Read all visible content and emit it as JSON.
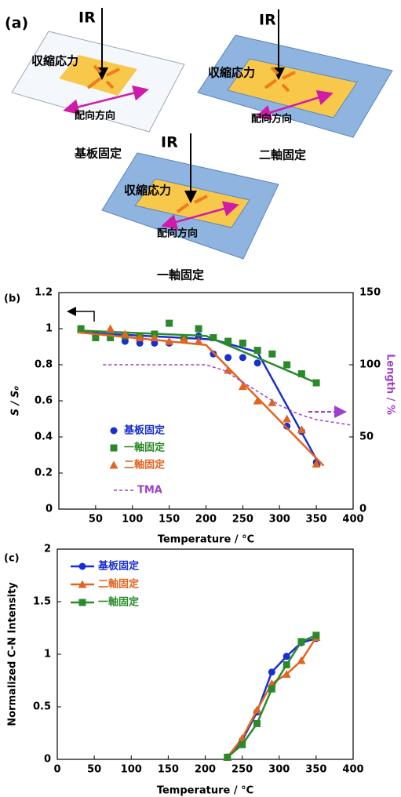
{
  "diagram": {
    "panel": "(a)",
    "parts": [
      {
        "ir": "IR",
        "stress": "収縮応力",
        "orientation": "配向方向",
        "caption": "基板固定"
      },
      {
        "ir": "IR",
        "stress": "収縮応力",
        "orientation": "配向方向",
        "caption": "二軸固定"
      },
      {
        "ir": "IR",
        "stress": "収縮応力",
        "orientation": "配向方向",
        "caption": "一軸固定"
      }
    ]
  },
  "chart_data": [
    {
      "type": "scatter",
      "panel": "(b)",
      "xlabel": "Temperature / °C",
      "ylabel": "S / S₀",
      "y2label": "Length / %",
      "xlim": [
        0,
        400
      ],
      "xticks": [
        50,
        100,
        150,
        200,
        250,
        300,
        350,
        400
      ],
      "ylim": [
        0,
        1.2
      ],
      "yticks": [
        0,
        0.2,
        0.4,
        0.6,
        0.8,
        1,
        1.2
      ],
      "y2lim": [
        0,
        150
      ],
      "y2ticks": [
        0,
        50,
        100,
        150
      ],
      "series": [
        {
          "name": "基板固定",
          "color": "#1a2fd0",
          "marker": "circle",
          "x": [
            50,
            90,
            110,
            130,
            150,
            190,
            210,
            230,
            250,
            270,
            310,
            330,
            350
          ],
          "values": [
            0.97,
            0.93,
            0.92,
            0.92,
            0.92,
            0.96,
            0.86,
            0.84,
            0.84,
            0.81,
            0.46,
            0.43,
            0.26
          ],
          "fit": {
            "x": [
              25,
              210,
              270,
              355
            ],
            "values": [
              0.98,
              0.94,
              0.87,
              0.24
            ]
          }
        },
        {
          "name": "一軸固定",
          "color": "#2a8a2a",
          "marker": "square",
          "x": [
            30,
            50,
            70,
            90,
            110,
            130,
            150,
            170,
            190,
            210,
            230,
            250,
            270,
            290,
            310,
            330,
            350
          ],
          "values": [
            1.0,
            0.95,
            0.95,
            0.96,
            0.96,
            0.97,
            1.03,
            0.95,
            1.0,
            0.95,
            0.93,
            0.92,
            0.88,
            0.86,
            0.8,
            0.75,
            0.7
          ],
          "fit": {
            "x": [
              25,
              200,
              350
            ],
            "values": [
              0.99,
              0.96,
              0.7
            ]
          }
        },
        {
          "name": "二軸固定",
          "color": "#e2641e",
          "marker": "triangle",
          "x": [
            70,
            90,
            110,
            130,
            150,
            170,
            190,
            230,
            250,
            270,
            290,
            310,
            330,
            350
          ],
          "values": [
            1.0,
            0.97,
            0.95,
            0.95,
            0.93,
            0.94,
            0.93,
            0.77,
            0.68,
            0.6,
            0.59,
            0.5,
            0.44,
            0.25
          ],
          "fit": {
            "x": [
              25,
              200,
              360
            ],
            "values": [
              0.98,
              0.91,
              0.24
            ]
          }
        },
        {
          "name": "TMA",
          "color": "#a040c8",
          "dash": true,
          "axis": "y2",
          "x": [
            60,
            200,
            225,
            250,
            275,
            300,
            325,
            350,
            375,
            400
          ],
          "values": [
            100,
            100,
            96,
            88,
            80,
            72,
            66,
            62,
            60,
            58
          ]
        }
      ]
    },
    {
      "type": "line",
      "panel": "(c)",
      "xlabel": "Temperature / °C",
      "ylabel": "Normalized C-N Intensity",
      "xlim": [
        0,
        400
      ],
      "xticks": [
        0,
        50,
        100,
        150,
        200,
        250,
        300,
        350,
        400
      ],
      "ylim": [
        0,
        2
      ],
      "yticks": [
        0,
        0.5,
        1,
        1.5,
        2
      ],
      "x": [
        230,
        250,
        270,
        290,
        310,
        330,
        350
      ],
      "series": [
        {
          "name": "基板固定",
          "color": "#1a2fd0",
          "marker": "circle",
          "values": [
            0.02,
            0.18,
            0.45,
            0.83,
            0.98,
            1.11,
            1.15
          ]
        },
        {
          "name": "二軸固定",
          "color": "#e2641e",
          "marker": "triangle",
          "values": [
            0.02,
            0.2,
            0.47,
            0.72,
            0.81,
            0.94,
            1.16
          ]
        },
        {
          "name": "一軸固定",
          "color": "#2a8a2a",
          "marker": "square",
          "values": [
            0.02,
            0.14,
            0.34,
            0.67,
            0.9,
            1.12,
            1.18
          ]
        }
      ]
    }
  ]
}
